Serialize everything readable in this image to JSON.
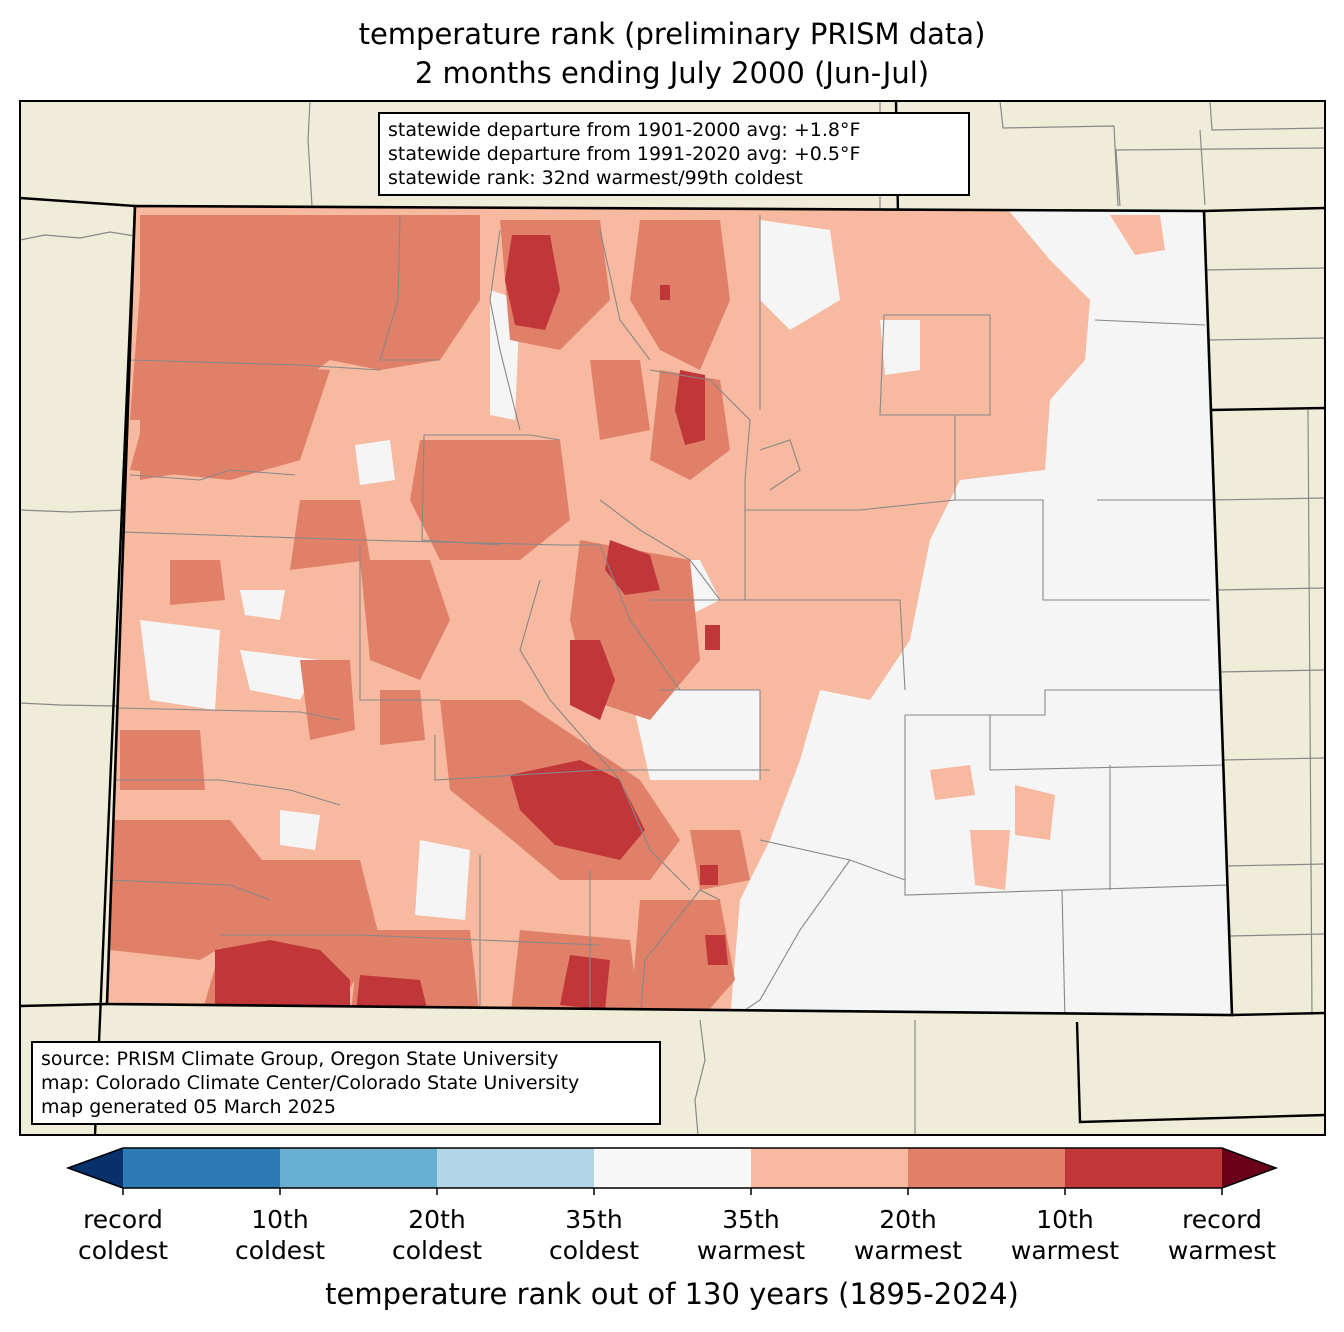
{
  "title": {
    "line1": "temperature rank (preliminary PRISM data)",
    "line2": "2 months ending July 2000 (Jun-Jul)"
  },
  "stats_box": {
    "line1": "statewide departure from 1901-2000 avg: +1.8°F",
    "line2": "statewide departure from 1991-2020 avg: +0.5°F",
    "line3": "statewide rank: 32nd warmest/99th coldest"
  },
  "source_box": {
    "line1": "source: PRISM Climate Group, Oregon State University",
    "line2": "map: Colorado Climate Center/Colorado State University",
    "line3": "map generated 05 March 2025"
  },
  "colorbar": {
    "title": "temperature rank out of 130 years (1895-2024)",
    "ticks": [
      {
        "line1": "record",
        "line2": "coldest"
      },
      {
        "line1": "10th",
        "line2": "coldest"
      },
      {
        "line1": "20th",
        "line2": "coldest"
      },
      {
        "line1": "35th",
        "line2": "coldest"
      },
      {
        "line1": "35th",
        "line2": "warmest"
      },
      {
        "line1": "20th",
        "line2": "warmest"
      },
      {
        "line1": "10th",
        "line2": "warmest"
      },
      {
        "line1": "record",
        "line2": "warmest"
      }
    ],
    "colors": [
      "#08306b",
      "#2c7bb6",
      "#67aed3",
      "#b2d5e7",
      "#f7f7f7",
      "#f7b99f",
      "#e08068",
      "#c13639",
      "#6b0019"
    ]
  },
  "legend_colors": {
    "land_outside": "#efedd9",
    "near_normal": "#f5f5f5",
    "warm_35": "#f7b99f",
    "warm_20": "#e08068",
    "warm_10": "#c13639"
  }
}
